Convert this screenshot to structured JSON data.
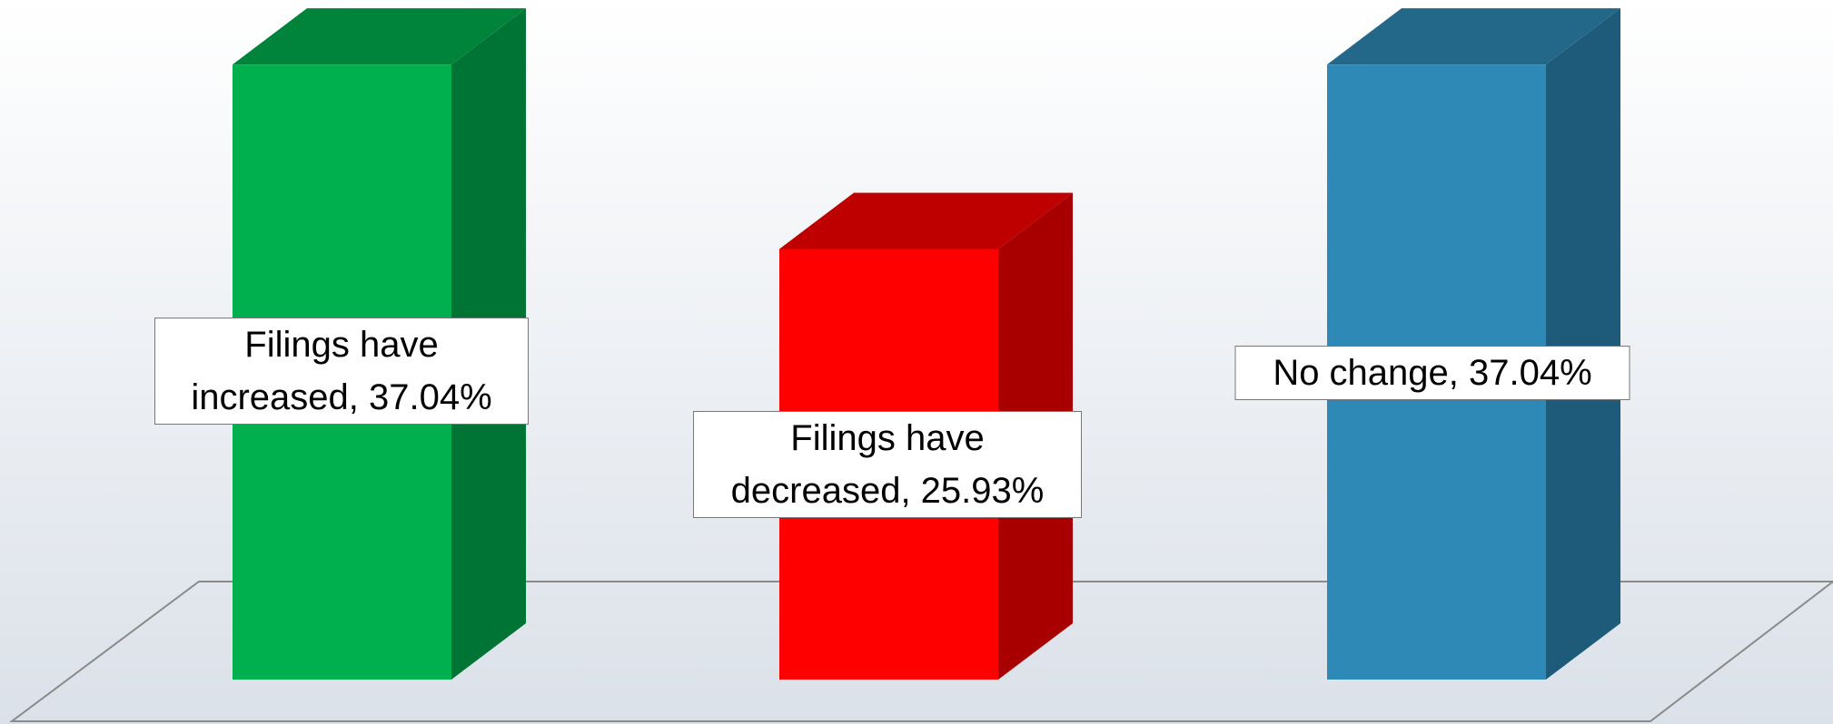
{
  "chart_data": {
    "type": "bar3d",
    "values": [
      37.04,
      25.93,
      37.04
    ],
    "value_labels": [
      "Filings have increased, 37.04%",
      "Filings have decreased, 25.93%",
      "No change, 37.04%"
    ],
    "colors": [
      "#00b04f",
      "#ff0000",
      "#2e89b7"
    ],
    "ylim": [
      0,
      40
    ]
  }
}
